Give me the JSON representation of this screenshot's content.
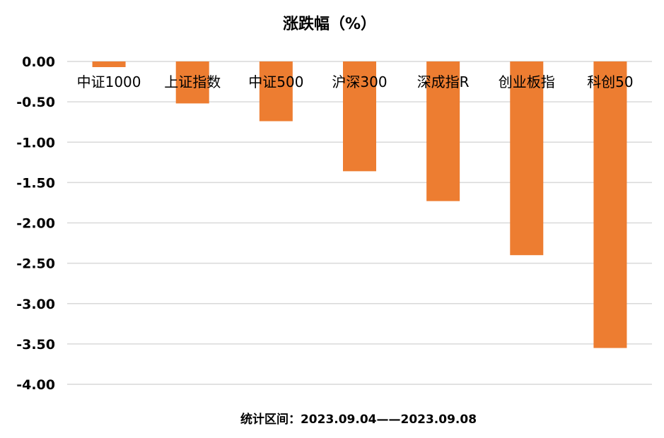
{
  "chart_data": {
    "type": "bar",
    "title": "涨跌幅（%）",
    "categories": [
      "中证1000",
      "上证指数",
      "中证500",
      "沪深300",
      "深成指R",
      "创业板指",
      "科创50"
    ],
    "values": [
      -0.07,
      -0.52,
      -0.74,
      -1.36,
      -1.73,
      -2.4,
      -3.55
    ],
    "yticks": [
      "0.00",
      "-0.50",
      "-1.00",
      "-1.50",
      "-2.00",
      "-2.50",
      "-3.00",
      "-3.50",
      "-4.00"
    ],
    "ylim": [
      -4.0,
      0.0
    ],
    "grid": true,
    "legend": "none",
    "bar_color": "#ED7D31",
    "footnote": "统计区间：2023.09.04——2023.09.08"
  }
}
